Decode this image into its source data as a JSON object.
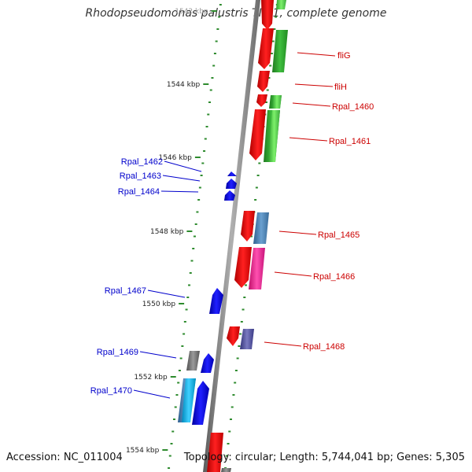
{
  "title": "Rhodopseudomonas palustris TIE-1, complete genome",
  "footer": {
    "accession": "Accession: NC_011004",
    "topology": "Topology: circular; Length: 5,744,041 bp; Genes: 5,305"
  },
  "scale": {
    "unit": "kbp",
    "ticks": [
      {
        "label": "1542 kbp",
        "kbp": 1542
      },
      {
        "label": "1544 kbp",
        "kbp": 1544
      },
      {
        "label": "1546 kbp",
        "kbp": 1546
      },
      {
        "label": "1548 kbp",
        "kbp": 1548
      },
      {
        "label": "1550 kbp",
        "kbp": 1550
      },
      {
        "label": "1552 kbp",
        "kbp": 1552
      },
      {
        "label": "1554 kbp",
        "kbp": 1554
      }
    ]
  },
  "genes": {
    "plus_strand": [
      {
        "name": "fliG",
        "color": "#e8141b"
      },
      {
        "name": "fliH",
        "color": "#e8141b"
      },
      {
        "name": "Rpal_1460",
        "color": "#e8141b"
      },
      {
        "name": "Rpal_1461",
        "color": "#e8141b"
      },
      {
        "name": "Rpal_1465",
        "color": "#e8141b"
      },
      {
        "name": "Rpal_1466",
        "color": "#e8141b"
      },
      {
        "name": "Rpal_1468",
        "color": "#e8141b"
      }
    ],
    "minus_strand": [
      {
        "name": "Rpal_1462",
        "color": "#1414e6"
      },
      {
        "name": "Rpal_1463",
        "color": "#1414e6"
      },
      {
        "name": "Rpal_1464",
        "color": "#1414e6"
      },
      {
        "name": "Rpal_1467",
        "color": "#1414e6"
      },
      {
        "name": "Rpal_1469",
        "color": "#1414e6"
      },
      {
        "name": "Rpal_1470",
        "color": "#1414e6"
      }
    ]
  },
  "colors": {
    "plus_label": "#cc0000",
    "minus_label": "#0000cc",
    "backbone": "#8a8a8a",
    "tick_marks": "#2e8b2e"
  }
}
